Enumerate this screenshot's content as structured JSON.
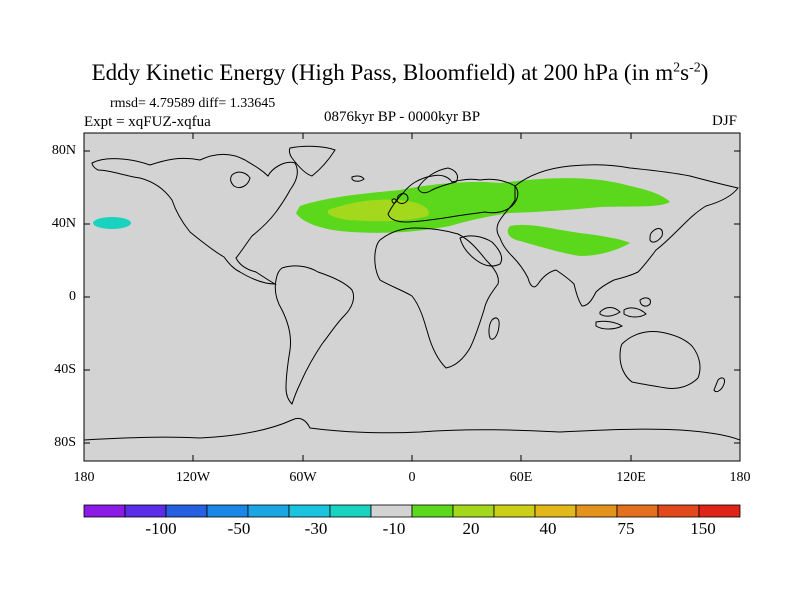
{
  "title": {
    "main": "Eddy Kinetic Energy (High Pass, Bloomfield) at 200 hPa (in m",
    "sup1": "2",
    "mid": "s",
    "sup2": "-2",
    "close": ")"
  },
  "stats": {
    "text": "rmsd= 4.79589 diff= 1.33645"
  },
  "experiment": {
    "text": "Expt = xqFUZ-xqfua"
  },
  "period": {
    "text": "0876kyr BP - 0000kyr BP"
  },
  "season": {
    "text": "DJF"
  },
  "map": {
    "land_color": "#d3d3d3",
    "coast_color": "#000000",
    "lat_labels": [
      "80N",
      "40N",
      "0",
      "40S",
      "80S"
    ],
    "lon_labels": [
      "180",
      "120W",
      "60W",
      "0",
      "60E",
      "120E",
      "180"
    ]
  },
  "colorbar": {
    "colors": [
      "#8a1ae6",
      "#5a2ee6",
      "#2560e3",
      "#1a87e6",
      "#1aa6e3",
      "#1ac4df",
      "#1ad2c0",
      "#d3d3d3",
      "#5cd81c",
      "#a3d81c",
      "#cccf18",
      "#e3b81a",
      "#e3931c",
      "#e3701c",
      "#e3481c",
      "#e0241a"
    ],
    "labels": [
      "-100",
      "-50",
      "-30",
      "-10",
      "20",
      "40",
      "75",
      "150"
    ]
  }
}
